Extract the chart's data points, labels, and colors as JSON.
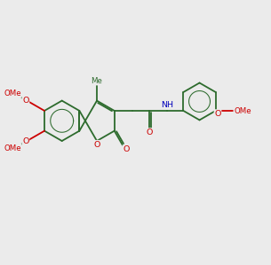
{
  "bg_color": "#ebebeb",
  "bond_color": "#2d6b2d",
  "o_color": "#cc0000",
  "n_color": "#0000bb",
  "lw": 1.3,
  "fs": 6.8,
  "fs_small": 6.2
}
